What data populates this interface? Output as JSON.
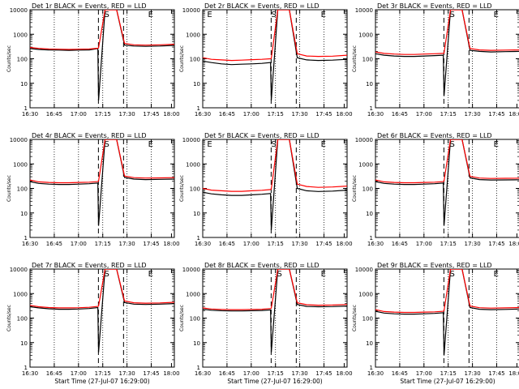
{
  "chart_data": [
    {
      "type": "line",
      "title": "Det 1r BLACK = Events, RED = LLD",
      "ylabel": "Counts/sec",
      "xlabel": "",
      "yscale": "log",
      "ylim": [
        1,
        10000
      ],
      "x_ticks": [
        "16:30",
        "16:45",
        "17:00",
        "17:15",
        "17:30",
        "17:45",
        "18:00"
      ],
      "markers": [
        "S",
        "E"
      ],
      "series": [
        {
          "name": "Events",
          "color": "#000000",
          "values": [
            260,
            240,
            230,
            225,
            220,
            225,
            230,
            260,
            2,
            10000,
            10000,
            360,
            330,
            320,
            330,
            350
          ]
        },
        {
          "name": "LLD",
          "color": "#ff0000",
          "values": [
            290,
            265,
            250,
            245,
            240,
            245,
            250,
            270,
            280,
            10000,
            10000,
            420,
            370,
            360,
            370,
            390
          ]
        }
      ]
    },
    {
      "type": "line",
      "title": "Det 2r BLACK = Events, RED = LLD",
      "ylabel": "Counts/sec",
      "xlabel": "",
      "yscale": "log",
      "ylim": [
        1,
        10000
      ],
      "x_ticks": [
        "16:30",
        "16:45",
        "17:00",
        "17:15",
        "17:30",
        "17:45",
        "18:00"
      ],
      "markers": [
        "E",
        "S",
        "E"
      ],
      "series": [
        {
          "name": "Events",
          "color": "#000000",
          "values": [
            80,
            70,
            62,
            58,
            60,
            62,
            65,
            70,
            2,
            10000,
            10000,
            110,
            90,
            85,
            88,
            95
          ]
        },
        {
          "name": "LLD",
          "color": "#ff0000",
          "values": [
            110,
            95,
            90,
            85,
            88,
            92,
            95,
            100,
            105,
            10000,
            10000,
            160,
            130,
            125,
            128,
            140
          ]
        }
      ]
    },
    {
      "type": "line",
      "title": "Det 3r BLACK = Events, RED = LLD",
      "ylabel": "Counts/sec",
      "xlabel": "",
      "yscale": "log",
      "ylim": [
        1,
        10000
      ],
      "x_ticks": [
        "16:30",
        "16:45",
        "17:00",
        "17:15",
        "17:30",
        "17:45",
        "18:00"
      ],
      "markers": [
        "S",
        "E"
      ],
      "series": [
        {
          "name": "Events",
          "color": "#000000",
          "values": [
            160,
            140,
            130,
            125,
            125,
            130,
            135,
            140,
            3,
            10000,
            10000,
            220,
            200,
            190,
            195,
            200
          ]
        },
        {
          "name": "LLD",
          "color": "#ff0000",
          "values": [
            190,
            165,
            155,
            150,
            150,
            155,
            160,
            165,
            170,
            10000,
            10000,
            260,
            230,
            220,
            225,
            230
          ]
        }
      ]
    },
    {
      "type": "line",
      "title": "Det 4r BLACK = Events, RED = LLD",
      "ylabel": "Counts/sec",
      "xlabel": "",
      "yscale": "log",
      "ylim": [
        1,
        10000
      ],
      "x_ticks": [
        "16:30",
        "16:45",
        "17:00",
        "17:15",
        "17:30",
        "17:45",
        "18:00"
      ],
      "markers": [
        "S",
        "E"
      ],
      "series": [
        {
          "name": "Events",
          "color": "#000000",
          "values": [
            190,
            160,
            150,
            145,
            145,
            150,
            155,
            165,
            3,
            10000,
            10000,
            280,
            240,
            230,
            235,
            240
          ]
        },
        {
          "name": "LLD",
          "color": "#ff0000",
          "values": [
            220,
            185,
            175,
            170,
            170,
            175,
            180,
            190,
            200,
            10000,
            10000,
            320,
            275,
            265,
            270,
            275
          ]
        }
      ]
    },
    {
      "type": "line",
      "title": "Det 5r BLACK = Events, RED = LLD",
      "ylabel": "Counts/sec",
      "xlabel": "",
      "yscale": "log",
      "ylim": [
        1,
        10000
      ],
      "x_ticks": [
        "16:30",
        "16:45",
        "17:00",
        "17:15",
        "17:30",
        "17:45",
        "18:00"
      ],
      "markers": [
        "E",
        "S",
        "E"
      ],
      "series": [
        {
          "name": "Events",
          "color": "#000000",
          "values": [
            70,
            60,
            55,
            52,
            52,
            55,
            58,
            62,
            2,
            10000,
            10000,
            100,
            80,
            75,
            78,
            85
          ]
        },
        {
          "name": "LLD",
          "color": "#ff0000",
          "values": [
            100,
            85,
            80,
            76,
            76,
            80,
            84,
            90,
            95,
            10000,
            10000,
            150,
            120,
            110,
            115,
            125
          ]
        }
      ]
    },
    {
      "type": "line",
      "title": "Det 6r BLACK = Events, RED = LLD",
      "ylabel": "Counts/sec",
      "xlabel": "",
      "yscale": "log",
      "ylim": [
        1,
        10000
      ],
      "x_ticks": [
        "16:30",
        "16:45",
        "17:00",
        "17:15",
        "17:30",
        "17:45",
        "18:00"
      ],
      "markers": [
        "S",
        "E"
      ],
      "series": [
        {
          "name": "Events",
          "color": "#000000",
          "values": [
            190,
            160,
            150,
            145,
            145,
            150,
            155,
            165,
            3,
            10000,
            10000,
            270,
            230,
            220,
            222,
            225
          ]
        },
        {
          "name": "LLD",
          "color": "#ff0000",
          "values": [
            220,
            185,
            175,
            170,
            170,
            175,
            180,
            190,
            200,
            10000,
            10000,
            310,
            265,
            255,
            258,
            260
          ]
        }
      ]
    },
    {
      "type": "line",
      "title": "Det 7r BLACK = Events, RED = LLD",
      "ylabel": "Counts/sec",
      "xlabel": "Start Time (27-Jul-07 16:29:00)",
      "yscale": "log",
      "ylim": [
        1,
        10000
      ],
      "x_ticks": [
        "16:30",
        "16:45",
        "17:00",
        "17:15",
        "17:30",
        "17:45",
        "18:00"
      ],
      "markers": [
        "S",
        "E"
      ],
      "series": [
        {
          "name": "Events",
          "color": "#000000",
          "values": [
            290,
            260,
            240,
            230,
            230,
            235,
            245,
            270,
            4,
            10000,
            10000,
            430,
            370,
            360,
            370,
            390
          ]
        },
        {
          "name": "LLD",
          "color": "#ff0000",
          "values": [
            330,
            290,
            270,
            260,
            260,
            265,
            275,
            300,
            310,
            10000,
            10000,
            500,
            420,
            405,
            415,
            440
          ]
        }
      ]
    },
    {
      "type": "line",
      "title": "Det 8r BLACK = Events, RED = LLD",
      "ylabel": "Counts/sec",
      "xlabel": "Start Time (27-Jul-07 16:29:00)",
      "yscale": "log",
      "ylim": [
        1,
        10000
      ],
      "x_ticks": [
        "16:30",
        "16:45",
        "17:00",
        "17:15",
        "17:30",
        "17:45",
        "18:00"
      ],
      "markers": [
        "S",
        "E"
      ],
      "series": [
        {
          "name": "Events",
          "color": "#000000",
          "values": [
            230,
            210,
            200,
            195,
            195,
            200,
            205,
            215,
            4,
            10000,
            10000,
            360,
            300,
            290,
            295,
            310
          ]
        },
        {
          "name": "LLD",
          "color": "#ff0000",
          "values": [
            260,
            235,
            225,
            220,
            220,
            225,
            230,
            245,
            255,
            10000,
            10000,
            420,
            350,
            335,
            340,
            360
          ]
        }
      ]
    },
    {
      "type": "line",
      "title": "Det 9r BLACK = Events, RED = LLD",
      "ylabel": "Counts/sec",
      "xlabel": "Start Time (27-Jul-07 16:29:00)",
      "yscale": "log",
      "ylim": [
        1,
        10000
      ],
      "x_ticks": [
        "16:30",
        "16:45",
        "17:00",
        "17:15",
        "17:30",
        "17:45",
        "18:00"
      ],
      "markers": [
        "S",
        "E"
      ],
      "series": [
        {
          "name": "Events",
          "color": "#000000",
          "values": [
            190,
            160,
            150,
            145,
            145,
            150,
            155,
            165,
            3,
            10000,
            10000,
            270,
            230,
            220,
            225,
            235
          ]
        },
        {
          "name": "LLD",
          "color": "#ff0000",
          "values": [
            220,
            185,
            175,
            170,
            170,
            175,
            180,
            190,
            200,
            10000,
            10000,
            310,
            265,
            255,
            260,
            270
          ]
        }
      ]
    }
  ]
}
